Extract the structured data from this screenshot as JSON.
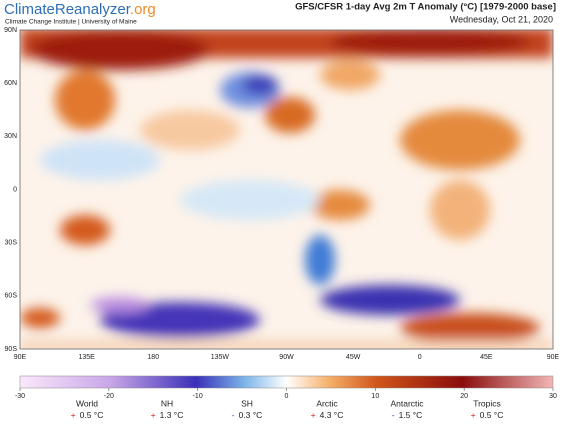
{
  "header": {
    "logo_a": "Climate",
    "logo_b": "Reanalyzer",
    "logo_c": ".org",
    "subtitle": "Climate Change Institute | University of Maine",
    "title": "GFS/CFSR 1-day Avg 2m T Anomaly (°C) [1979-2000 base]",
    "date": "Wednesday, Oct 21, 2020"
  },
  "map": {
    "lat_labels": [
      "90N",
      "60N",
      "30N",
      "0",
      "30S",
      "60S",
      "90S"
    ],
    "lon_labels": [
      "90E",
      "135E",
      "180",
      "135W",
      "90W",
      "45W",
      "0",
      "45E",
      "90E"
    ]
  },
  "colorbar": {
    "range": [
      -30,
      30
    ],
    "ticks": [
      -30,
      -20,
      -10,
      0,
      10,
      20,
      30
    ]
  },
  "stats": [
    {
      "label": "World",
      "sign": "+",
      "value": "0.5 °C"
    },
    {
      "label": "NH",
      "sign": "+",
      "value": "1.3 °C"
    },
    {
      "label": "SH",
      "sign": "-",
      "value": "0.3 °C"
    },
    {
      "label": "Arctic",
      "sign": "+",
      "value": "4.3 °C"
    },
    {
      "label": "Antarctic",
      "sign": "-",
      "value": "1.5 °C"
    },
    {
      "label": "Tropics",
      "sign": "+",
      "value": "0.5 °C"
    }
  ]
}
